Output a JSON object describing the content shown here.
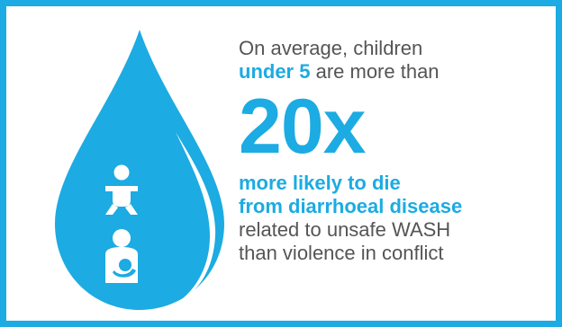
{
  "intro": {
    "line1": "On average, children",
    "highlight": "under 5",
    "line2_rest": " are more than"
  },
  "multiplier": "20x",
  "likely": {
    "line1": "more likely to die",
    "line2": "from diarrhoeal disease"
  },
  "rest": {
    "line1": "related to unsafe WASH",
    "line2": "than violence in conflict"
  },
  "colors": {
    "accent": "#1cabe2",
    "text": "#555555",
    "drop_highlight": "#ffffff"
  },
  "icons": [
    "water-drop-icon",
    "baby-icon",
    "breastfeeding-icon"
  ]
}
